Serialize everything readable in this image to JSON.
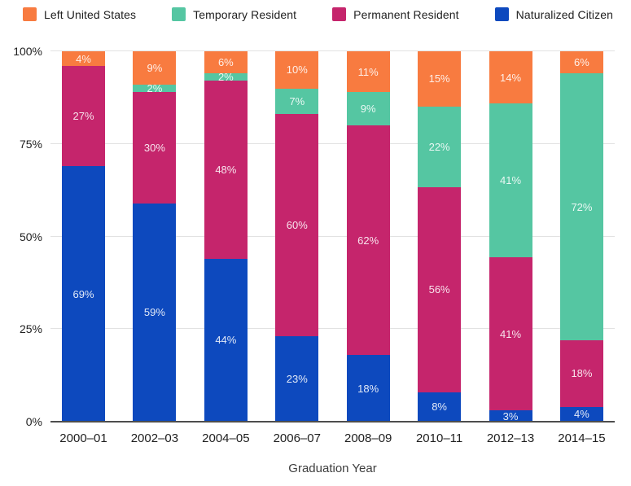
{
  "chart_data": {
    "type": "bar",
    "stacked": true,
    "title": "",
    "xlabel": "Graduation Year",
    "ylabel": "",
    "ylim": [
      0,
      100
    ],
    "grid": true,
    "legend_position": "top",
    "label_suffix": "%",
    "categories": [
      "2000–01",
      "2002–03",
      "2004–05",
      "2006–07",
      "2008–09",
      "2010–11",
      "2012–13",
      "2014–15"
    ],
    "series": [
      {
        "name": "Left United States",
        "color": "#F87B40",
        "values": [
          4,
          9,
          6,
          10,
          11,
          15,
          14,
          6
        ]
      },
      {
        "name": "Temporary Resident",
        "color": "#55C6A2",
        "values": [
          0,
          2,
          2,
          7,
          9,
          22,
          41,
          72
        ]
      },
      {
        "name": "Permanent Resident",
        "color": "#C5256C",
        "values": [
          27,
          30,
          48,
          60,
          62,
          56,
          41,
          18
        ]
      },
      {
        "name": "Naturalized Citizen",
        "color": "#0D49BE",
        "values": [
          69,
          59,
          44,
          23,
          18,
          8,
          3,
          4
        ]
      }
    ],
    "y_ticks": [
      {
        "value": 0,
        "label": "0%"
      },
      {
        "value": 25,
        "label": "25%"
      },
      {
        "value": 50,
        "label": "50%"
      },
      {
        "value": 75,
        "label": "75%"
      },
      {
        "value": 100,
        "label": "100%"
      }
    ],
    "colors": {
      "gridline": "#e2e2e2",
      "axis_line": "#4d4d4d",
      "tick_text": "#1f1f1f",
      "bar_label_text": "#ffffff"
    }
  }
}
